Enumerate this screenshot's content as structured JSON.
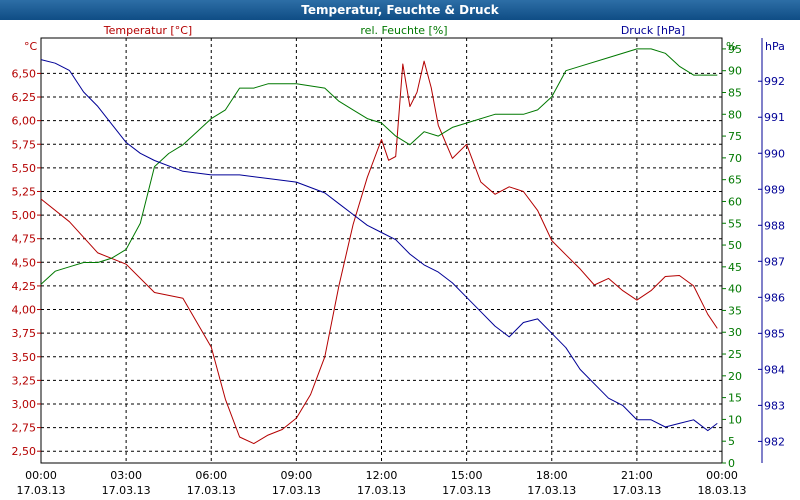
{
  "window": {
    "title": "Temperatur, Feuchte & Druck"
  },
  "chart_data": {
    "type": "line",
    "title": "Temperatur, Feuchte & Druck",
    "x_ticks": [
      {
        "time": "00:00",
        "date": "17.03.13"
      },
      {
        "time": "03:00",
        "date": "17.03.13"
      },
      {
        "time": "06:00",
        "date": "17.03.13"
      },
      {
        "time": "09:00",
        "date": "17.03.13"
      },
      {
        "time": "12:00",
        "date": "17.03.13"
      },
      {
        "time": "15:00",
        "date": "17.03.13"
      },
      {
        "time": "18:00",
        "date": "17.03.13"
      },
      {
        "time": "21:00",
        "date": "17.03.13"
      },
      {
        "time": "00:00",
        "date": "18.03.13"
      }
    ],
    "x_range": [
      "17.03.13 00:00",
      "18.03.13 00:00"
    ],
    "grid": true,
    "axes": {
      "temperature": {
        "label": "Temperatur [°C]",
        "unit": "°C",
        "range": [
          2.375,
          6.875
        ],
        "color": "#b40000",
        "ticks": [
          "2,50",
          "2,75",
          "3,00",
          "3,25",
          "3,50",
          "3,75",
          "4,00",
          "4,25",
          "4,50",
          "4,75",
          "5,00",
          "5,25",
          "5,50",
          "5,75",
          "6,00",
          "6,25",
          "6,50"
        ]
      },
      "humidity": {
        "label": "rel. Feuchte [%]",
        "unit": "%",
        "range": [
          0,
          97.5
        ],
        "color": "#007800",
        "ticks": [
          "0",
          "5",
          "10",
          "15",
          "20",
          "25",
          "30",
          "35",
          "40",
          "45",
          "50",
          "55",
          "60",
          "65",
          "70",
          "75",
          "80",
          "85",
          "90",
          "95"
        ]
      },
      "pressure": {
        "label": "Druck [hPa]",
        "unit": "hPa",
        "range": [
          981.4,
          993.2
        ],
        "color": "#000096",
        "ticks": [
          "982",
          "983",
          "984",
          "985",
          "986",
          "987",
          "988",
          "989",
          "990",
          "991",
          "992"
        ]
      }
    },
    "series": [
      {
        "name": "Temperatur [°C]",
        "axis": "temperature",
        "color": "#b40000",
        "x": [
          "17.03.13 00:00",
          "17.03.13 01:00",
          "17.03.13 02:00",
          "17.03.13 03:00",
          "17.03.13 04:00",
          "17.03.13 05:00",
          "17.03.13 06:00",
          "17.03.13 06:30",
          "17.03.13 07:00",
          "17.03.13 07:30",
          "17.03.13 08:00",
          "17.03.13 08:30",
          "17.03.13 09:00",
          "17.03.13 09:30",
          "17.03.13 10:00",
          "17.03.13 10:30",
          "17.03.13 11:00",
          "17.03.13 11:30",
          "17.03.13 12:00",
          "17.03.13 12:15",
          "17.03.13 12:30",
          "17.03.13 12:45",
          "17.03.13 13:00",
          "17.03.13 13:15",
          "17.03.13 13:30",
          "17.03.13 13:45",
          "17.03.13 14:00",
          "17.03.13 14:30",
          "17.03.13 15:00",
          "17.03.13 15:30",
          "17.03.13 16:00",
          "17.03.13 16:30",
          "17.03.13 17:00",
          "17.03.13 17:30",
          "17.03.13 18:00",
          "17.03.13 18:30",
          "17.03.13 19:00",
          "17.03.13 19:30",
          "17.03.13 20:00",
          "17.03.13 20:30",
          "17.03.13 21:00",
          "17.03.13 21:30",
          "17.03.13 22:00",
          "17.03.13 22:30",
          "17.03.13 23:00",
          "17.03.13 23:30",
          "17.03.13 23:50"
        ],
        "values": [
          5.17,
          4.93,
          4.6,
          4.48,
          4.18,
          4.12,
          3.6,
          3.05,
          2.65,
          2.58,
          2.67,
          2.73,
          2.85,
          3.1,
          3.5,
          4.25,
          4.9,
          5.4,
          5.8,
          5.58,
          5.62,
          6.6,
          6.15,
          6.3,
          6.63,
          6.35,
          5.95,
          5.6,
          5.75,
          5.35,
          5.22,
          5.3,
          5.25,
          5.05,
          4.73,
          4.58,
          4.43,
          4.26,
          4.33,
          4.2,
          4.1,
          4.2,
          4.35,
          4.36,
          4.25,
          3.95,
          3.8
        ]
      },
      {
        "name": "rel. Feuchte [%]",
        "axis": "humidity",
        "color": "#007800",
        "x": [
          "17.03.13 00:00",
          "17.03.13 00:30",
          "17.03.13 01:00",
          "17.03.13 01:30",
          "17.03.13 02:00",
          "17.03.13 02:30",
          "17.03.13 03:00",
          "17.03.13 03:30",
          "17.03.13 04:00",
          "17.03.13 04:30",
          "17.03.13 05:00",
          "17.03.13 05:30",
          "17.03.13 06:00",
          "17.03.13 06:30",
          "17.03.13 07:00",
          "17.03.13 07:30",
          "17.03.13 08:00",
          "17.03.13 09:00",
          "17.03.13 10:00",
          "17.03.13 10:30",
          "17.03.13 11:00",
          "17.03.13 11:30",
          "17.03.13 12:00",
          "17.03.13 12:30",
          "17.03.13 13:00",
          "17.03.13 13:30",
          "17.03.13 14:00",
          "17.03.13 14:30",
          "17.03.13 15:00",
          "17.03.13 16:00",
          "17.03.13 17:00",
          "17.03.13 17:30",
          "17.03.13 18:00",
          "17.03.13 18:30",
          "17.03.13 19:00",
          "17.03.13 20:00",
          "17.03.13 21:00",
          "17.03.13 21:30",
          "17.03.13 22:00",
          "17.03.13 22:30",
          "17.03.13 23:00",
          "17.03.13 23:30",
          "17.03.13 23:50"
        ],
        "values": [
          41,
          44,
          45,
          46,
          46,
          47,
          49,
          55,
          68,
          71,
          73,
          76,
          79,
          81,
          86,
          86,
          87,
          87,
          86,
          83,
          81,
          79,
          78,
          75,
          73,
          76,
          75,
          77,
          78,
          80,
          80,
          81,
          84,
          90,
          91,
          93,
          95,
          95,
          94,
          91,
          89,
          89,
          89
        ]
      },
      {
        "name": "Druck [hPa]",
        "axis": "pressure",
        "color": "#000096",
        "x": [
          "17.03.13 00:00",
          "17.03.13 00:30",
          "17.03.13 01:00",
          "17.03.13 01:30",
          "17.03.13 02:00",
          "17.03.13 02:30",
          "17.03.13 03:00",
          "17.03.13 03:30",
          "17.03.13 04:00",
          "17.03.13 05:00",
          "17.03.13 06:00",
          "17.03.13 07:00",
          "17.03.13 08:00",
          "17.03.13 09:00",
          "17.03.13 10:00",
          "17.03.13 10:30",
          "17.03.13 11:00",
          "17.03.13 11:30",
          "17.03.13 12:00",
          "17.03.13 12:30",
          "17.03.13 13:00",
          "17.03.13 13:30",
          "17.03.13 14:00",
          "17.03.13 14:30",
          "17.03.13 15:00",
          "17.03.13 15:30",
          "17.03.13 16:00",
          "17.03.13 16:30",
          "17.03.13 17:00",
          "17.03.13 17:30",
          "17.03.13 18:00",
          "17.03.13 18:30",
          "17.03.13 19:00",
          "17.03.13 19:30",
          "17.03.13 20:00",
          "17.03.13 20:30",
          "17.03.13 21:00",
          "17.03.13 21:30",
          "17.03.13 22:00",
          "17.03.13 22:30",
          "17.03.13 23:00",
          "17.03.13 23:30",
          "17.03.13 23:50"
        ],
        "values": [
          992.6,
          992.5,
          992.3,
          991.7,
          991.3,
          990.8,
          990.3,
          990.0,
          989.8,
          989.5,
          989.4,
          989.4,
          989.3,
          989.2,
          988.9,
          988.6,
          988.3,
          988.0,
          987.8,
          987.6,
          987.2,
          986.9,
          986.7,
          986.4,
          986.0,
          985.6,
          985.2,
          984.9,
          985.3,
          985.4,
          985.0,
          984.6,
          984.0,
          983.6,
          983.2,
          983.0,
          982.6,
          982.6,
          982.4,
          982.5,
          982.6,
          982.3,
          982.5
        ]
      }
    ]
  }
}
